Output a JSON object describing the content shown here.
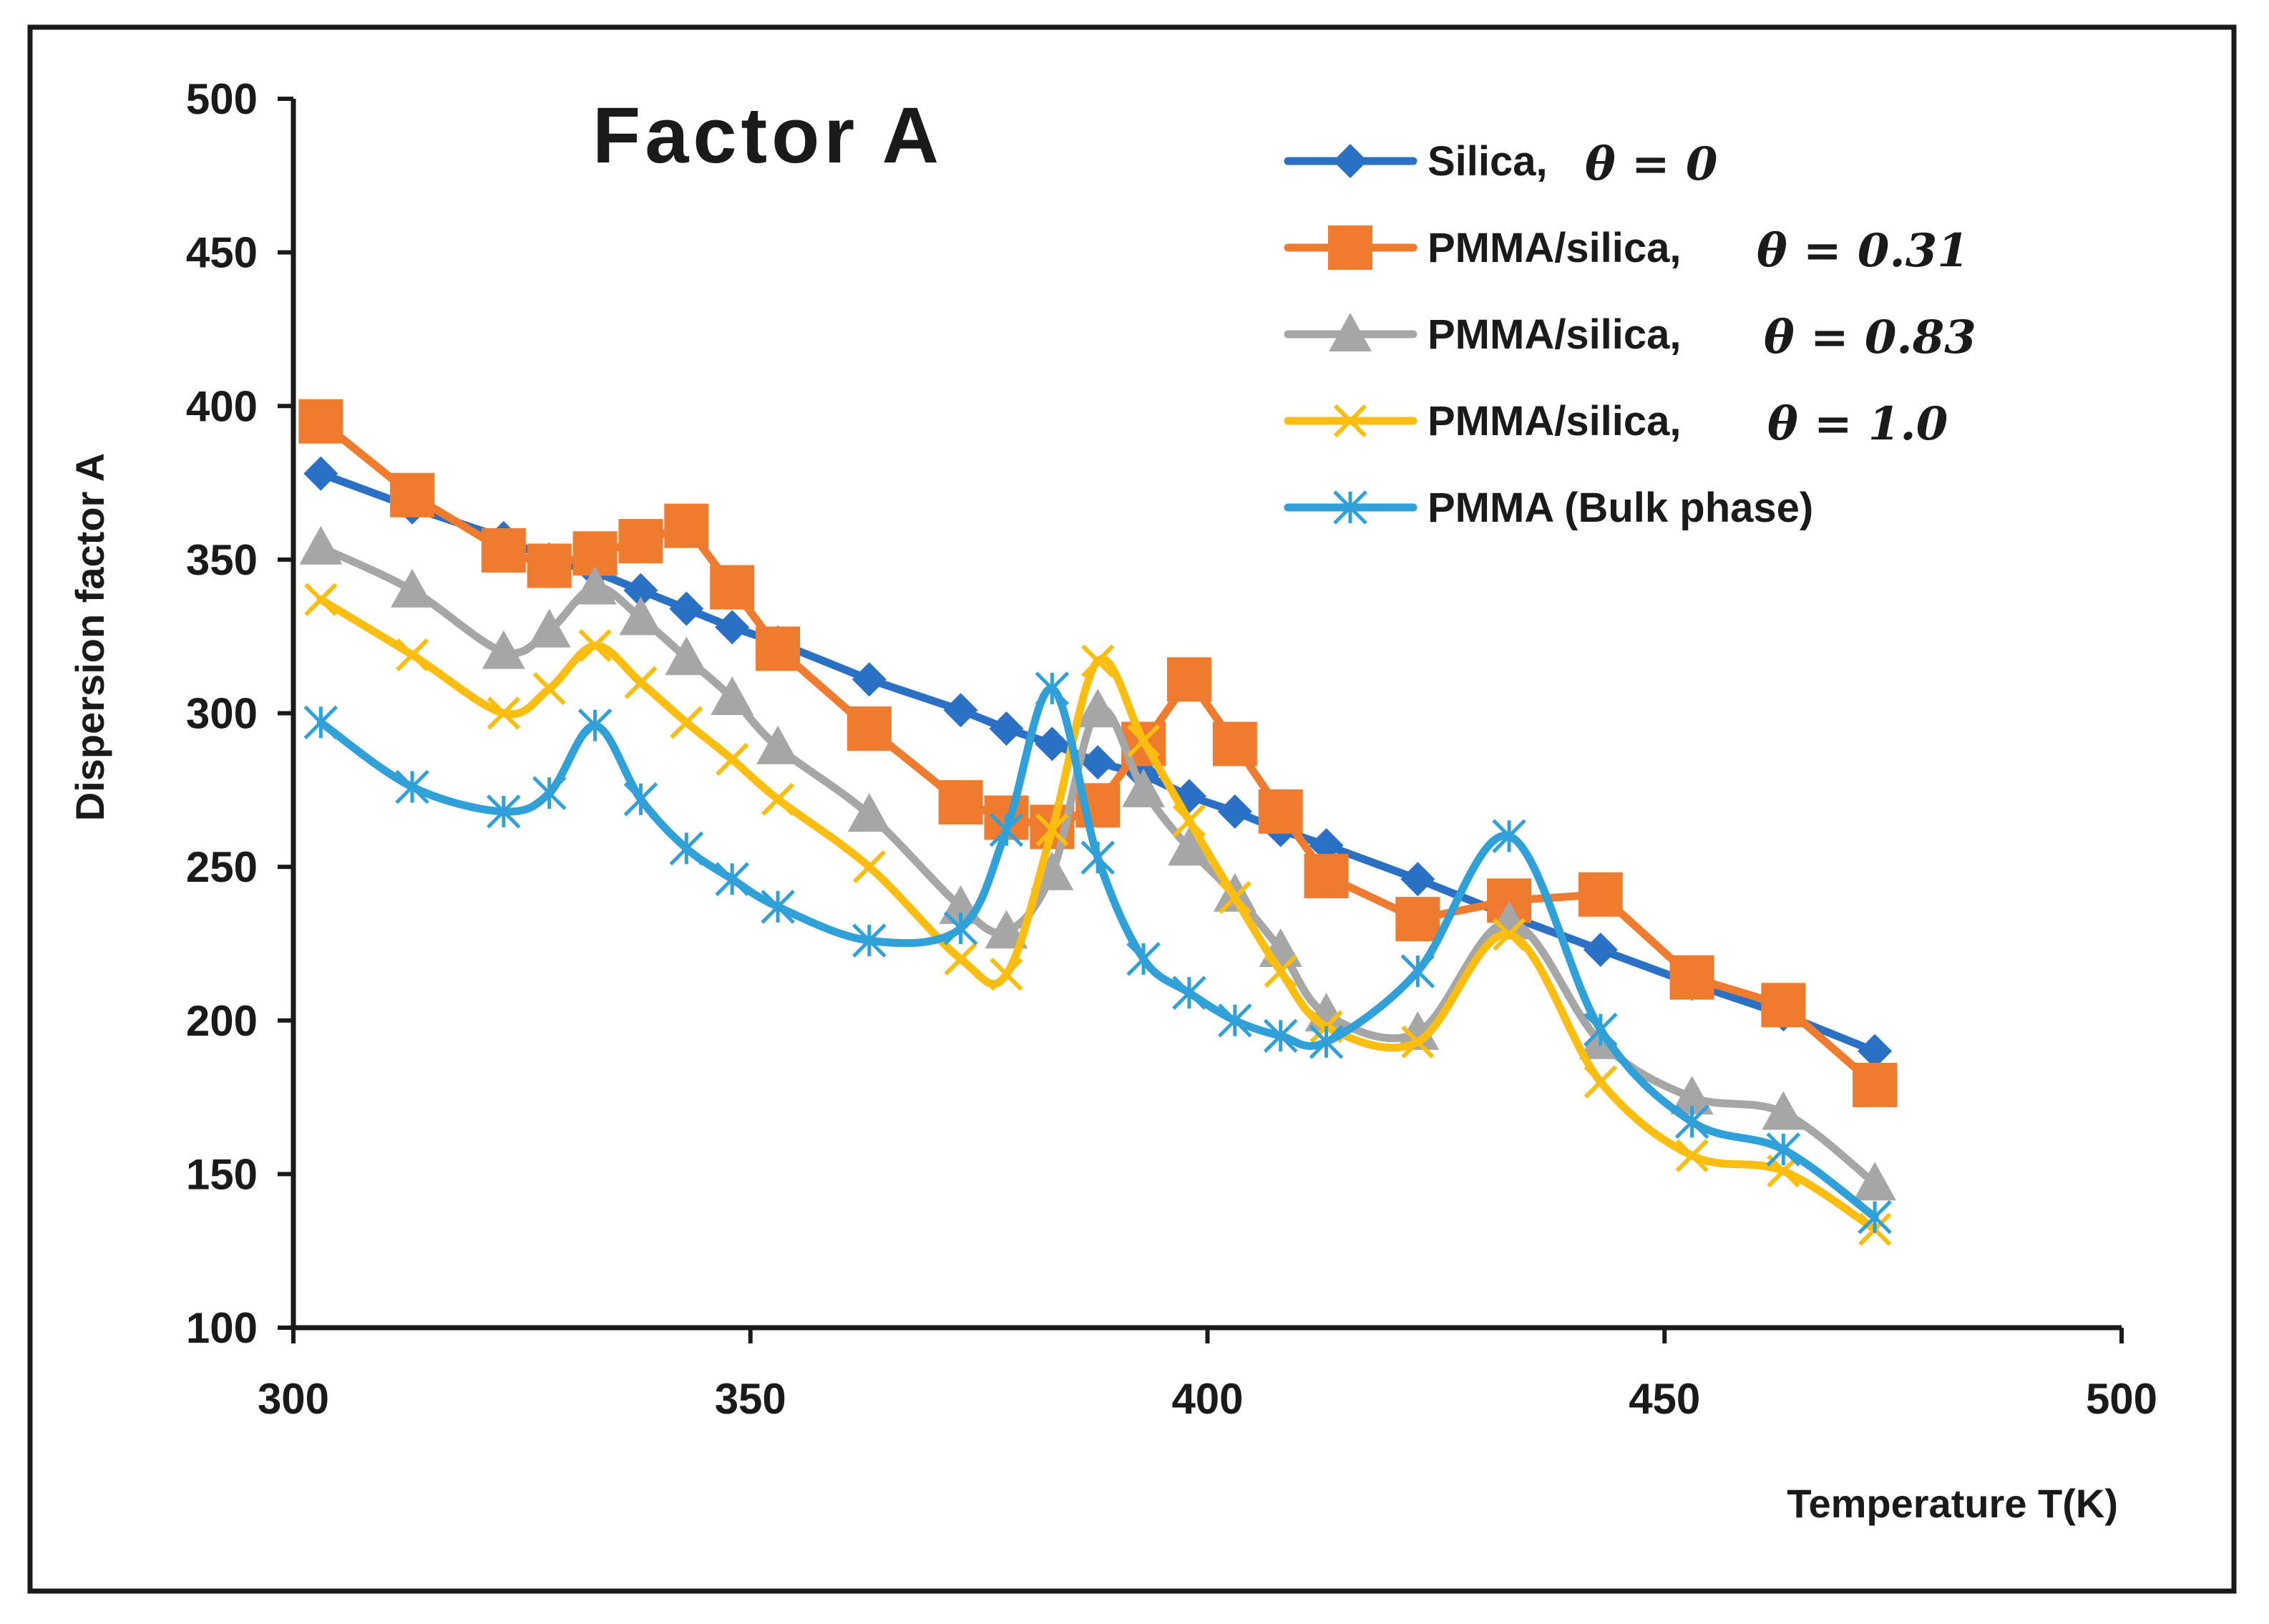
{
  "chart_data": {
    "type": "line",
    "title": "Factor  A",
    "xlabel": "Temperature T(K)",
    "ylabel": "Dispersion factor A",
    "xlim": [
      300,
      500
    ],
    "ylim": [
      100,
      500
    ],
    "xticks": [
      300,
      350,
      400,
      450,
      500
    ],
    "yticks": [
      100,
      150,
      200,
      250,
      300,
      350,
      400,
      450,
      500
    ],
    "legend_position": "top-right",
    "series": [
      {
        "name": "Silica,",
        "theta": "θ = 0",
        "color": "#2a70c4",
        "marker": "diamond",
        "x": [
          303,
          313,
          323,
          328,
          333,
          338,
          343,
          348,
          353,
          363,
          373,
          378,
          383,
          388,
          393,
          398,
          403,
          408,
          413,
          423,
          433,
          443,
          453,
          463,
          473
        ],
        "y": [
          378,
          367,
          357,
          350,
          346,
          340,
          334,
          328,
          323,
          311,
          301,
          295,
          290,
          284,
          280,
          273,
          268,
          262,
          257,
          246,
          234,
          223,
          212,
          202,
          190
        ]
      },
      {
        "name": "PMMA/silica,",
        "theta": "θ = 0.31",
        "color": "#ef7b2f",
        "marker": "square",
        "x": [
          303,
          313,
          323,
          328,
          333,
          338,
          343,
          348,
          353,
          363,
          373,
          378,
          383,
          388,
          393,
          398,
          403,
          408,
          413,
          423,
          433,
          443,
          453,
          463,
          473
        ],
        "y": [
          395,
          371,
          353,
          348,
          352,
          356,
          361,
          341,
          321,
          295,
          271,
          266,
          263,
          270,
          290,
          311,
          290,
          268,
          247,
          233,
          239,
          241,
          214,
          205,
          179
        ]
      },
      {
        "name": "PMMA/silica,",
        "theta": "θ = 0.83",
        "color": "#a6a6a6",
        "marker": "triangle",
        "x": [
          303,
          313,
          323,
          328,
          333,
          338,
          343,
          348,
          353,
          363,
          373,
          378,
          383,
          388,
          393,
          398,
          403,
          408,
          413,
          423,
          433,
          443,
          453,
          463,
          473
        ],
        "y": [
          354,
          340,
          320,
          327,
          341,
          331,
          318,
          305,
          289,
          267,
          237,
          229,
          248,
          301,
          275,
          256,
          241,
          223,
          202,
          196,
          232,
          193,
          175,
          170,
          147
        ]
      },
      {
        "name": "PMMA/silica,",
        "theta": "θ = 1.0",
        "color": "#fbbd0f",
        "marker": "x",
        "x": [
          303,
          313,
          323,
          328,
          333,
          338,
          343,
          348,
          353,
          363,
          373,
          378,
          383,
          388,
          393,
          398,
          403,
          408,
          413,
          423,
          433,
          443,
          453,
          463,
          473
        ],
        "y": [
          337,
          319,
          300,
          308,
          322,
          310,
          297,
          285,
          272,
          250,
          220,
          215,
          262,
          317,
          291,
          265,
          240,
          216,
          198,
          193,
          228,
          180,
          156,
          151,
          132
        ]
      },
      {
        "name": "PMMA (Bulk phase)",
        "theta": "",
        "color": "#30a0d8",
        "marker": "asterisk",
        "x": [
          303,
          313,
          323,
          328,
          333,
          338,
          343,
          348,
          353,
          363,
          373,
          378,
          383,
          388,
          393,
          398,
          403,
          408,
          413,
          423,
          433,
          443,
          453,
          463,
          473
        ],
        "y": [
          297,
          276,
          268,
          274,
          296,
          272,
          256,
          246,
          237,
          226,
          230,
          262,
          308,
          253,
          220,
          209,
          200,
          195,
          193,
          216,
          260,
          197,
          167,
          158,
          136
        ]
      }
    ]
  }
}
